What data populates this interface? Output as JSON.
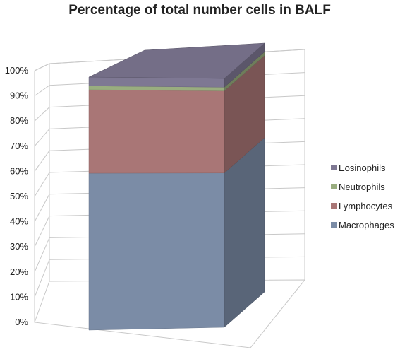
{
  "chart_data": {
    "type": "bar",
    "title": "Percentage  of total number  cells in BALF",
    "xlabel": "",
    "ylabel": "",
    "ylim": [
      0,
      100
    ],
    "y_ticks": [
      "0%",
      "10%",
      "20%",
      "30%",
      "40%",
      "50%",
      "60%",
      "70%",
      "80%",
      "90%",
      "100%"
    ],
    "categories": [
      ""
    ],
    "stacked": true,
    "percent_stacked": true,
    "three_d": true,
    "legend_position": "right",
    "series": [
      {
        "name": "Macrophages",
        "values": [
          62
        ],
        "color": "#7b8ca6"
      },
      {
        "name": "Lymphocytes",
        "values": [
          33
        ],
        "color": "#a97676"
      },
      {
        "name": "Neutrophils",
        "values": [
          1.5
        ],
        "color": "#99ad7f"
      },
      {
        "name": "Eosinophils",
        "values": [
          3.5
        ],
        "color": "#7e7893"
      }
    ]
  }
}
